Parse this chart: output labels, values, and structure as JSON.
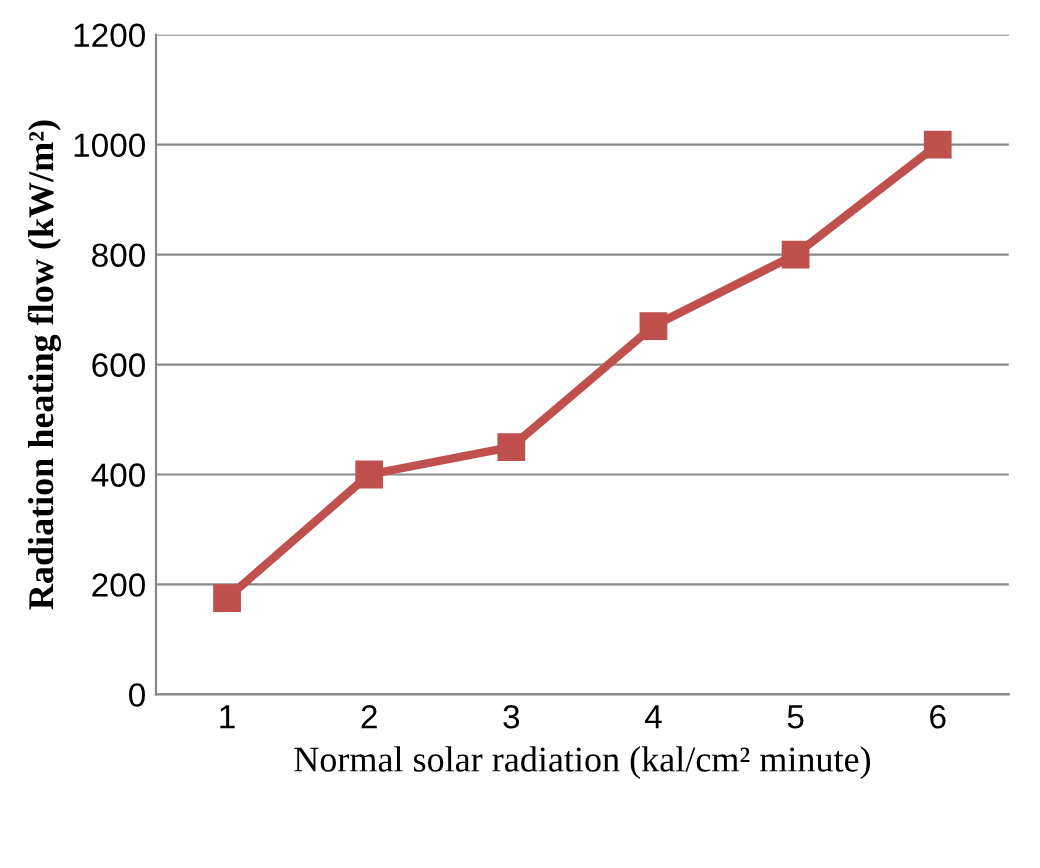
{
  "chart_data": {
    "type": "line",
    "xlabel": "Normal solar radiation (kal/cm² minute)",
    "ylabel": "Radiation heating flow (kW/m²)",
    "categories": [
      "1",
      "2",
      "3",
      "4",
      "5",
      "6"
    ],
    "series": [
      {
        "color": "#c0504d",
        "values": [
          175,
          400,
          450,
          670,
          800,
          1000
        ]
      }
    ],
    "ylim": [
      0,
      1200
    ],
    "yticks": [
      0,
      200,
      400,
      600,
      800,
      1000,
      1200
    ],
    "grid": "y",
    "marker": "square",
    "line_style": "solid"
  }
}
